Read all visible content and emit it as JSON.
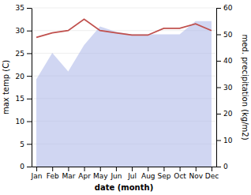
{
  "chart_data": {
    "type": "line",
    "categories": [
      "Jan",
      "Feb",
      "Mar",
      "Apr",
      "May",
      "Jun",
      "Jul",
      "Aug",
      "Sep",
      "Oct",
      "Nov",
      "Dec"
    ],
    "xlabel": "date (month)",
    "ylabel": "max temp (C)",
    "y2label": "med. precipitation (kg/m2)",
    "series": [
      {
        "type": "area",
        "axis": "y2",
        "color": "#aab4e8",
        "values": [
          33,
          43,
          36,
          46,
          53,
          51,
          50,
          50,
          50,
          50,
          55,
          55
        ]
      },
      {
        "type": "line",
        "color": "#c0504d",
        "values": [
          28.5,
          29.5,
          30.0,
          32.5,
          30.0,
          29.5,
          29.0,
          29.0,
          30.5,
          30.5,
          31.5,
          30.0
        ]
      }
    ],
    "ylim": [
      0,
      35
    ],
    "yticks": [
      0,
      5,
      10,
      15,
      20,
      25,
      30,
      35
    ],
    "y2lim": [
      0,
      60
    ],
    "y2ticks": [
      0,
      10,
      20,
      30,
      40,
      50,
      60
    ],
    "grid": true
  }
}
